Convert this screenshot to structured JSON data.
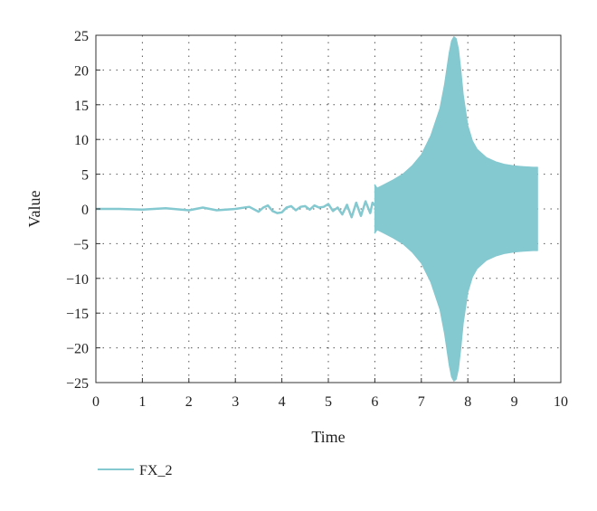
{
  "chart_data": {
    "type": "line",
    "title": "",
    "xlabel": "Time",
    "ylabel": "Value",
    "xlim": [
      0,
      10
    ],
    "ylim": [
      -25,
      25
    ],
    "x_ticks": [
      0,
      1,
      2,
      3,
      4,
      5,
      6,
      7,
      8,
      9,
      10
    ],
    "y_ticks": [
      25,
      20,
      15,
      10,
      5,
      0,
      -5,
      -10,
      -15,
      -20,
      -25
    ],
    "x_tick_labels": [
      "0",
      "1",
      "2",
      "3",
      "4",
      "5",
      "6",
      "7",
      "8",
      "9",
      "10"
    ],
    "y_tick_labels": [
      "25",
      "20",
      "15",
      "10",
      "5",
      "0",
      "−5",
      "−10",
      "−15",
      "−20",
      "−25"
    ],
    "grid": "dotted",
    "legend_position": "bottom-left",
    "series": [
      {
        "name": "FX_2",
        "color": "#84c8d0",
        "pre_oscillation_x": [
          0,
          0.5,
          1.0,
          1.5,
          2.0,
          2.3,
          2.6,
          3.0,
          3.3,
          3.5,
          3.6,
          3.7,
          3.8,
          3.9,
          4.0,
          4.1,
          4.2,
          4.3,
          4.4,
          4.5,
          4.6,
          4.7,
          4.8,
          4.9,
          5.0,
          5.1,
          5.2,
          5.3,
          5.4,
          5.5,
          5.6,
          5.7,
          5.8,
          5.9,
          5.95,
          6.0
        ],
        "pre_oscillation_y": [
          0,
          0,
          -0.1,
          0.1,
          -0.2,
          0.2,
          -0.2,
          0,
          0.3,
          -0.4,
          0.2,
          0.5,
          -0.3,
          -0.6,
          -0.5,
          0.2,
          0.4,
          -0.2,
          0.3,
          0.4,
          -0.1,
          0.5,
          0.2,
          0.3,
          0.7,
          -0.3,
          0.2,
          -0.8,
          0.6,
          -1.2,
          0.9,
          -1.0,
          1.1,
          -0.6,
          0.9,
          0.5
        ],
        "envelope_x": [
          6.0,
          6.05,
          6.2,
          6.4,
          6.6,
          6.8,
          7.0,
          7.2,
          7.4,
          7.5,
          7.6,
          7.65,
          7.7,
          7.75,
          7.8,
          7.85,
          7.9,
          8.0,
          8.1,
          8.2,
          8.4,
          8.6,
          8.8,
          9.0,
          9.2,
          9.4,
          9.5
        ],
        "envelope_upper": [
          3.5,
          3.0,
          3.5,
          4.2,
          5.0,
          6.2,
          7.8,
          10.5,
          14.5,
          18.0,
          22.5,
          24.2,
          24.8,
          24.5,
          23.0,
          20.0,
          16.5,
          12.0,
          9.8,
          8.6,
          7.4,
          6.8,
          6.4,
          6.2,
          6.1,
          6.0,
          6.0
        ],
        "envelope_lower": [
          -3.5,
          -3.0,
          -3.5,
          -4.2,
          -5.0,
          -6.2,
          -7.8,
          -10.5,
          -14.5,
          -18.0,
          -22.5,
          -24.2,
          -24.8,
          -24.5,
          -23.0,
          -20.0,
          -16.5,
          -12.0,
          -9.8,
          -8.6,
          -7.4,
          -6.8,
          -6.4,
          -6.2,
          -6.1,
          -6.0,
          -6.0
        ]
      }
    ]
  }
}
